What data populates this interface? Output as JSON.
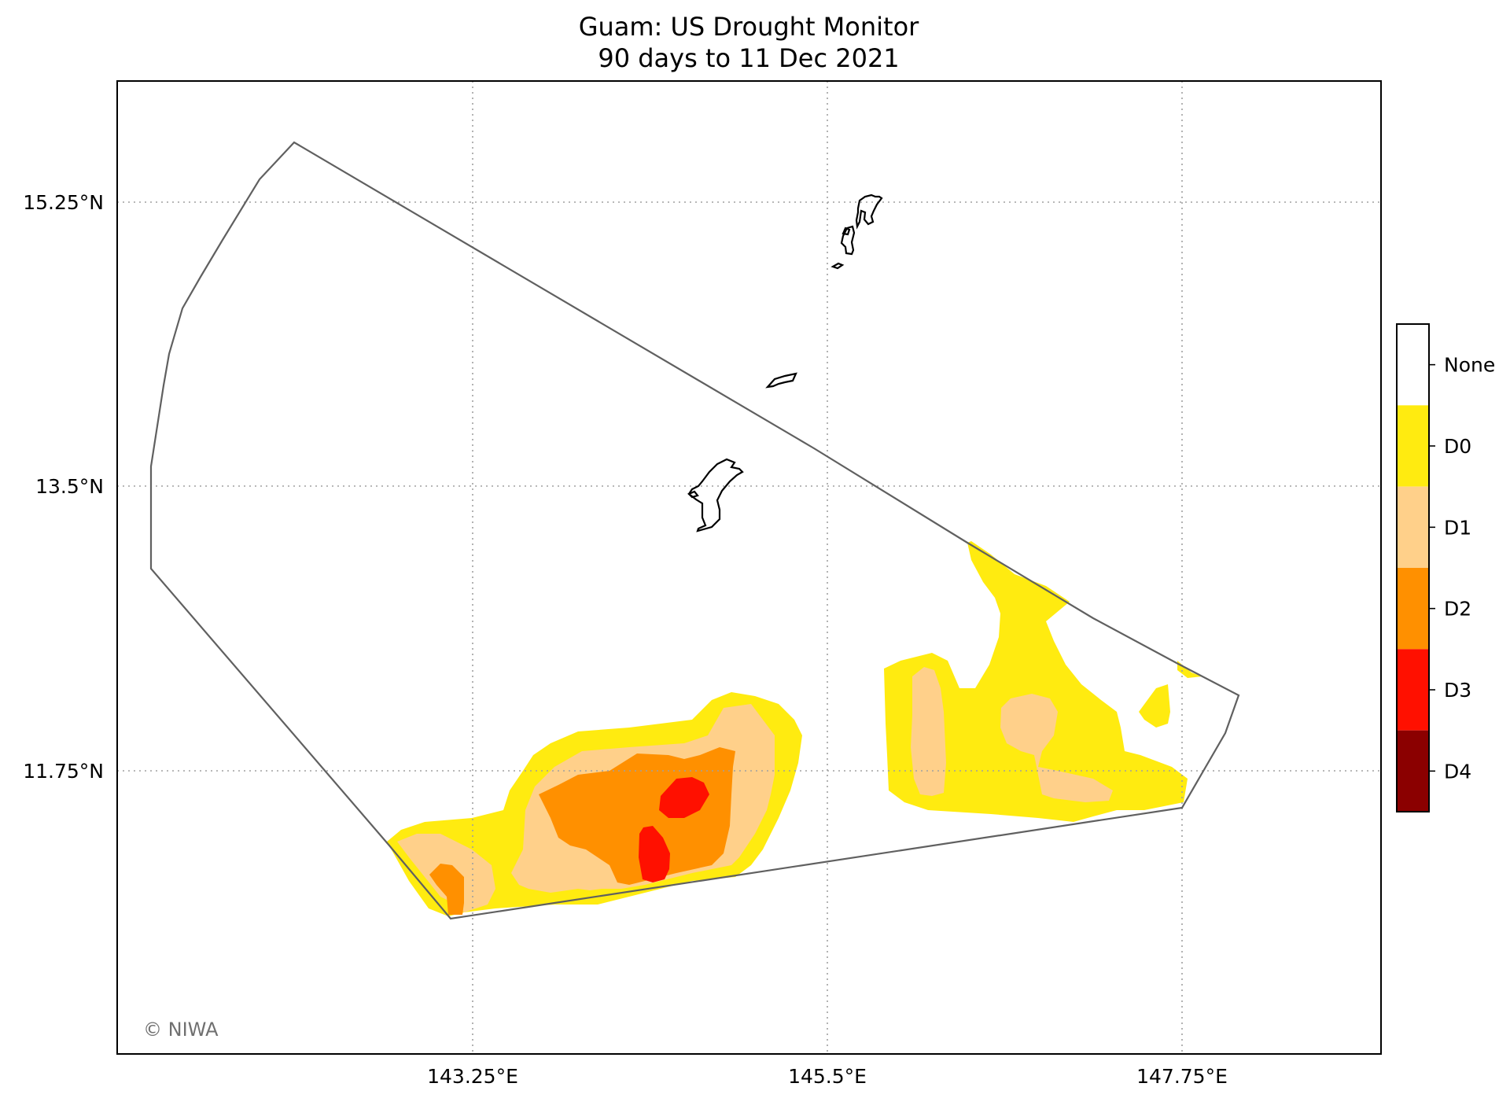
{
  "title_line1": "Guam: US Drought Monitor",
  "title_line2": "90 days to 11 Dec 2021",
  "x_ticks": [
    "143.25°E",
    "145.5°E",
    "147.75°E"
  ],
  "y_ticks": [
    "15.25°N",
    "13.5°N",
    "11.75°N"
  ],
  "copyright": "© NIWA",
  "colorbar": {
    "categories": [
      {
        "label": "None",
        "color": "#ffffff"
      },
      {
        "label": "D0",
        "color": "#ffeb10"
      },
      {
        "label": "D1",
        "color": "#ffd08a"
      },
      {
        "label": "D2",
        "color": "#ff9000"
      },
      {
        "label": "D3",
        "color": "#ff1000"
      },
      {
        "label": "D4",
        "color": "#8b0000"
      }
    ]
  }
}
